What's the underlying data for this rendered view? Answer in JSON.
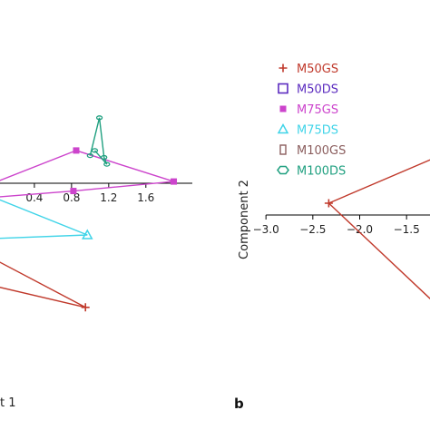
{
  "chart_data": [
    {
      "type": "line",
      "panel": "a",
      "xlabel_fragment": "t 1",
      "x_ticks": [
        "0.4",
        "0.8",
        "1.2",
        "1.6"
      ],
      "x_tick_values": [
        0.4,
        0.8,
        1.2,
        1.6
      ],
      "xlim": [
        0.03,
        2.1
      ],
      "ylim": [
        -0.8,
        0.45
      ],
      "series": [
        {
          "name": "M50GS",
          "color": "#c0392b",
          "marker": "plus",
          "points": [
            [
              0.0,
              -0.45
            ],
            [
              0.95,
              -0.72
            ],
            [
              0.0,
              -0.6
            ]
          ]
        },
        {
          "name": "M75GS",
          "color": "#cc44cc",
          "marker": "square",
          "points": [
            [
              0.0,
              0.01
            ],
            [
              0.85,
              0.19
            ],
            [
              1.9,
              0.01
            ],
            [
              0.82,
              -0.045
            ],
            [
              0.0,
              -0.08
            ]
          ]
        },
        {
          "name": "M75DS",
          "color": "#40d4e8",
          "marker": "triangle",
          "points": [
            [
              0.0,
              -0.09
            ],
            [
              0.97,
              -0.3
            ],
            [
              0.0,
              -0.32
            ]
          ]
        },
        {
          "name": "M100DS",
          "color": "#20a080",
          "marker": "circle",
          "points": [
            [
              1.0,
              0.16
            ],
            [
              1.1,
              0.38
            ],
            [
              1.15,
              0.15
            ],
            [
              1.18,
              0.11
            ],
            [
              1.05,
              0.19
            ]
          ]
        }
      ]
    },
    {
      "type": "line",
      "panel": "b",
      "panel_label": "b",
      "ylabel": "Component 2",
      "x_ticks": [
        "−3.0",
        "−2.5",
        "−2.0",
        "−1.5"
      ],
      "x_tick_values": [
        -3.0,
        -2.5,
        -2.0,
        -1.5
      ],
      "xlim": [
        -3.05,
        -1.25
      ],
      "ylim": [
        -0.6,
        0.3
      ],
      "series": [
        {
          "name": "M50GS",
          "color": "#c0392b",
          "marker": "plus",
          "points": [
            [
              -2.33,
              0.05
            ],
            [
              -1.2,
              0.3
            ]
          ]
        },
        {
          "name": "M50GS",
          "color": "#c0392b",
          "marker": "none",
          "points": [
            [
              -2.33,
              0.05
            ],
            [
              -1.2,
              -0.5
            ]
          ]
        }
      ],
      "legend": [
        {
          "label": "M50GS",
          "color": "#c0392b",
          "marker": "plus"
        },
        {
          "label": "M50DS",
          "color": "#5b2bbf",
          "marker": "square-open"
        },
        {
          "label": "M75GS",
          "color": "#cc44cc",
          "marker": "square"
        },
        {
          "label": "M75DS",
          "color": "#40d4e8",
          "marker": "triangle"
        },
        {
          "label": "M100GS",
          "color": "#8b5e5e",
          "marker": "rect-open"
        },
        {
          "label": "M100DS",
          "color": "#20a080",
          "marker": "hexagon"
        }
      ]
    }
  ]
}
